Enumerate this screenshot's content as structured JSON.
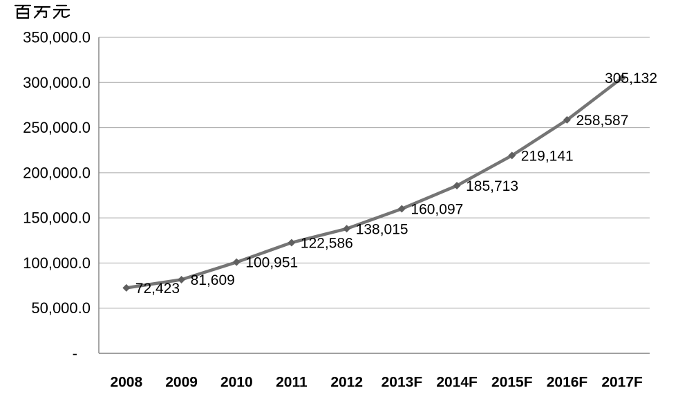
{
  "page": {
    "background_color": "#ffffff"
  },
  "chart_data": {
    "type": "line",
    "title": "",
    "unit_label": "百万元",
    "categories": [
      "2008",
      "2009",
      "2010",
      "2011",
      "2012",
      "2013F",
      "2014F",
      "2015F",
      "2016F",
      "2017F"
    ],
    "series": [
      {
        "name": "value",
        "values": [
          72423,
          81609,
          100951,
          122586,
          138015,
          160097,
          185713,
          219141,
          258587,
          305132
        ]
      }
    ],
    "data_labels": [
      "72,423",
      "81,609",
      "100,951",
      "122,586",
      "138,015",
      "160,097",
      "185,713",
      "219,141",
      "258,587",
      "305,132"
    ],
    "xlabel": "",
    "ylabel": "百万元",
    "y_axis": {
      "min": 0,
      "max": 350000,
      "step": 50000,
      "tick_labels_bottom_up": [
        "-",
        "50,000.0",
        "100,000.0",
        "150,000.0",
        "200,000.0",
        "250,000.0",
        "300,000.0",
        "350,000.0"
      ]
    },
    "grid": true,
    "legend_position": "none",
    "colors": {
      "line": "#757575",
      "marker": "#5f5f5f",
      "gridline": "#a6a6a6",
      "axis": "#808080",
      "tick_text": "#000000",
      "data_label_text": "#000000"
    }
  }
}
